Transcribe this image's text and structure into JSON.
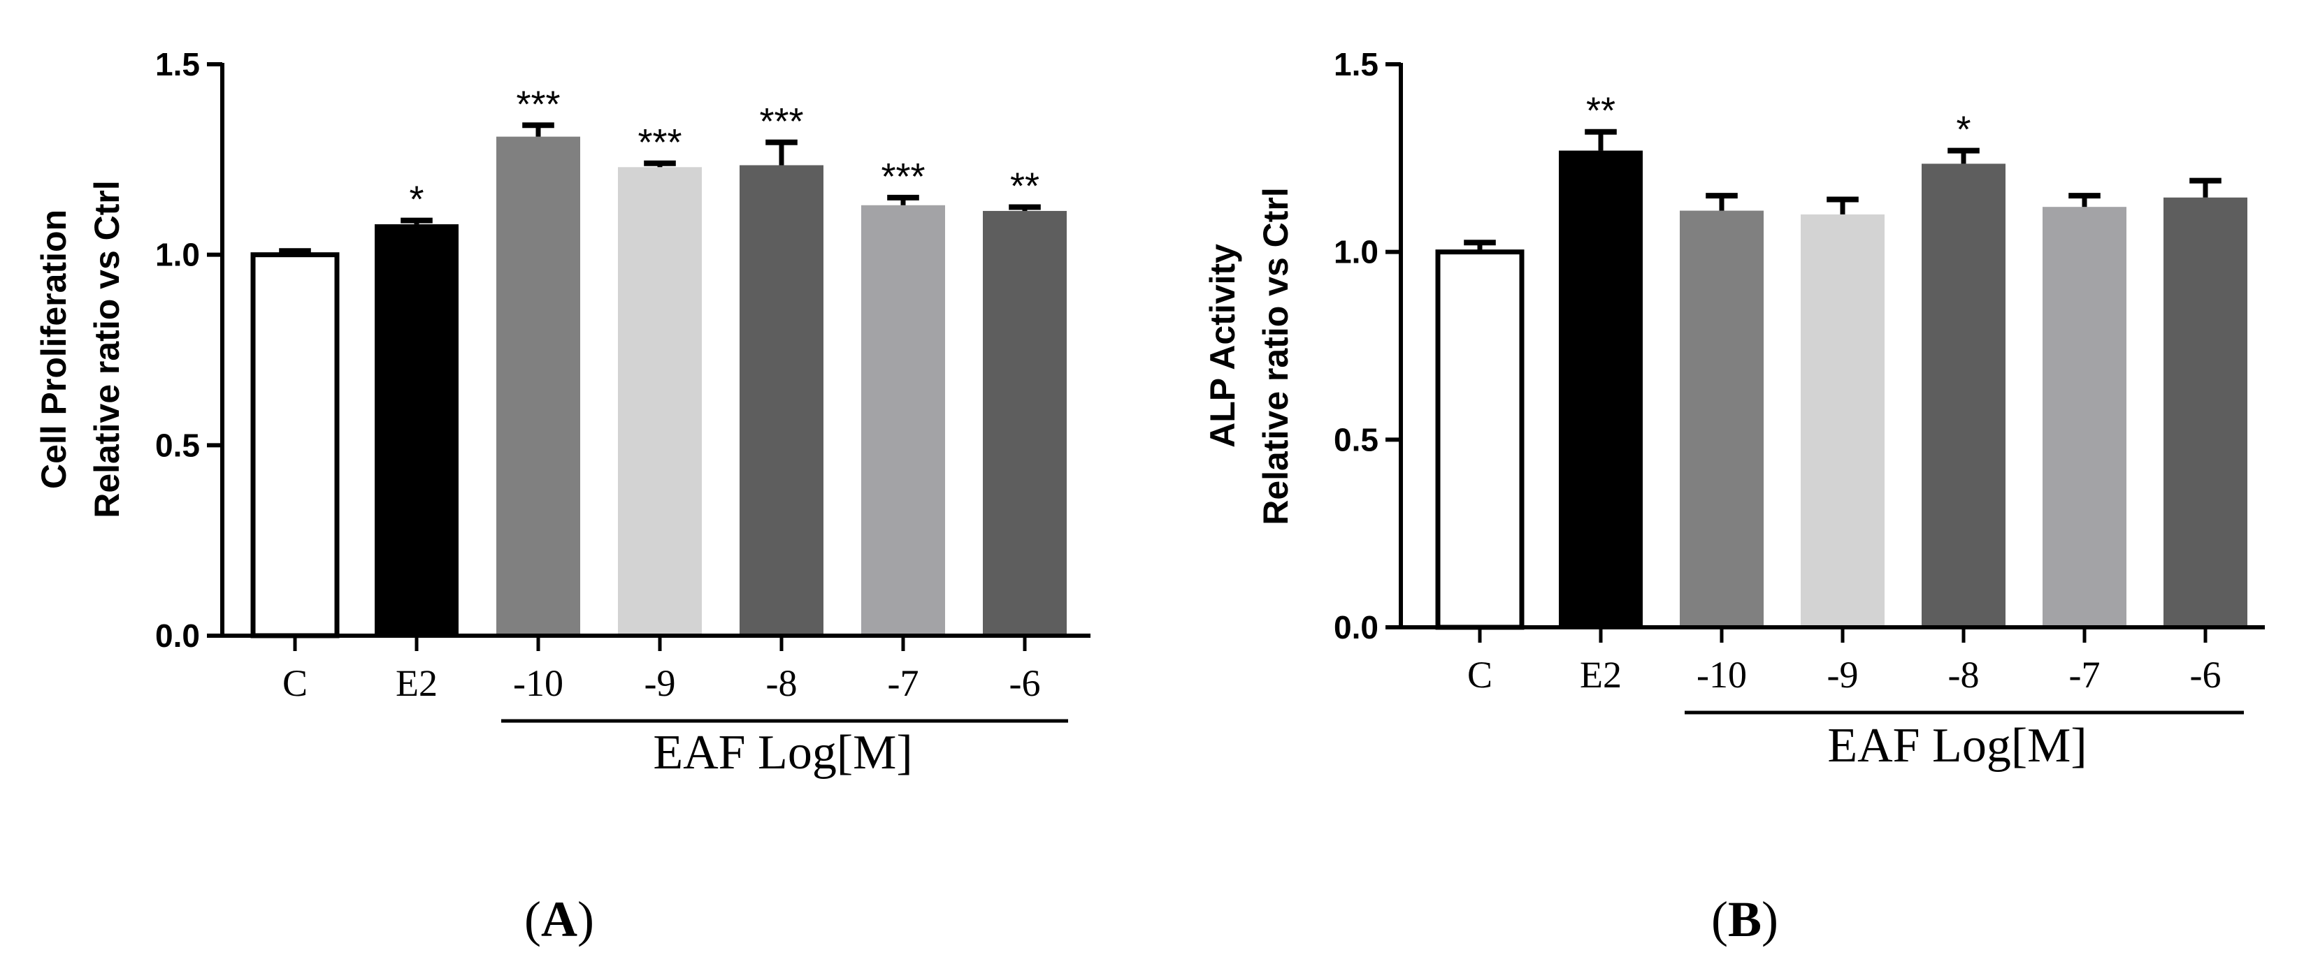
{
  "chart_data": [
    {
      "type": "bar",
      "panel": "A",
      "ylabel_lines": [
        "Cell Proliferation",
        "Relative ratio vs Ctrl"
      ],
      "ylim": [
        0,
        1.5
      ],
      "yticks": [
        "0.0",
        "0.5",
        "1.0",
        "1.5"
      ],
      "categories": [
        "C",
        "E2",
        "-10",
        "-9",
        "-8",
        "-7",
        "-6"
      ],
      "values": [
        1.0,
        1.08,
        1.31,
        1.23,
        1.235,
        1.13,
        1.115
      ],
      "errors": [
        0.01,
        0.01,
        0.03,
        0.01,
        0.06,
        0.02,
        0.01
      ],
      "significance": [
        "",
        "*",
        "***",
        "***",
        "***",
        "***",
        "**"
      ],
      "colors": [
        "#ffffff",
        "#000000",
        "#808080",
        "#d3d3d3",
        "#5e5e5e",
        "#a3a3a6",
        "#5e5e5e"
      ],
      "group_label": "EAF Log[M]"
    },
    {
      "type": "bar",
      "panel": "B",
      "ylabel_lines": [
        "ALP Activity",
        "Relative ratio vs Ctrl"
      ],
      "ylim": [
        0,
        1.5
      ],
      "yticks": [
        "0.0",
        "0.5",
        "1.0",
        "1.5"
      ],
      "categories": [
        "C",
        "E2",
        "-10",
        "-9",
        "-8",
        "-7",
        "-6"
      ],
      "values": [
        1.0,
        1.27,
        1.11,
        1.1,
        1.235,
        1.12,
        1.145
      ],
      "errors": [
        0.025,
        0.05,
        0.04,
        0.04,
        0.035,
        0.03,
        0.045
      ],
      "significance": [
        "",
        "**",
        "",
        "",
        "*",
        "",
        ""
      ],
      "colors": [
        "#ffffff",
        "#000000",
        "#808080",
        "#d3d3d3",
        "#5e5e5e",
        "#a3a3a6",
        "#5e5e5e"
      ],
      "group_label": "EAF Log[M]"
    }
  ]
}
